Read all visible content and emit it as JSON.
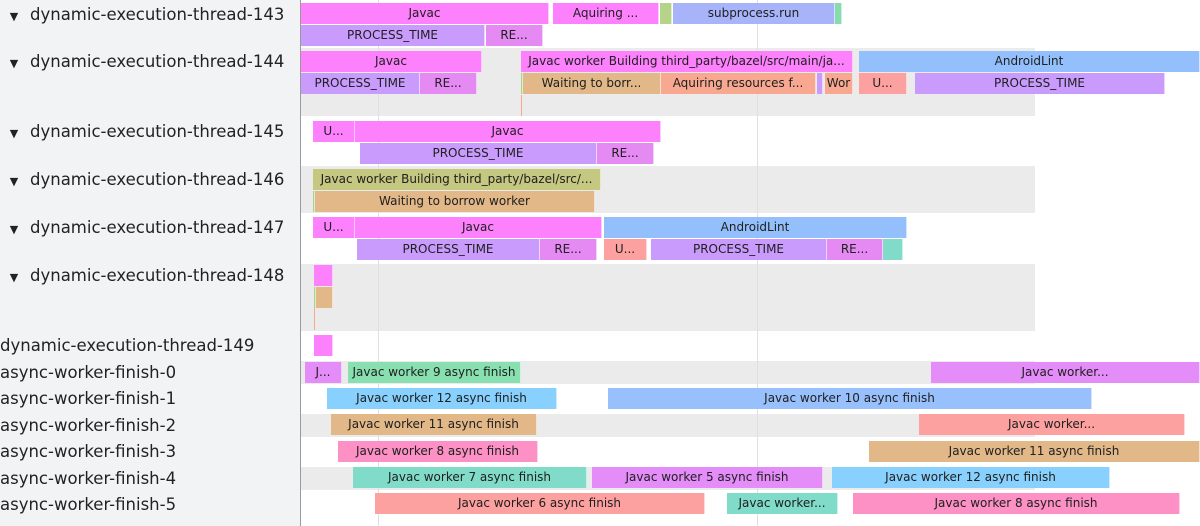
{
  "tracks": [
    {
      "label": "dynamic-execution-thread-143",
      "toggle": "▼",
      "slices": [
        {
          "label": "Javac",
          "color": "#fd80fd"
        },
        {
          "label": "Aquiring ...",
          "color": "#fd80fd"
        },
        {
          "label": "",
          "color": "#b5d48a"
        },
        {
          "label": "subprocess.run",
          "color": "#a8b4fa"
        },
        {
          "label": "",
          "color": "#86dcac"
        },
        {
          "label": "PROCESS_TIME",
          "color": "#c99bfd"
        },
        {
          "label": "RE...",
          "color": "#e58af2"
        }
      ]
    },
    {
      "label": "dynamic-execution-thread-144",
      "toggle": "▼",
      "slices": [
        {
          "label": "Javac",
          "color": "#fd80fd"
        },
        {
          "label": "Javac worker Building third_party/bazel/src/main/ja...",
          "color": "#fd80fd"
        },
        {
          "label": "AndroidLint",
          "color": "#93c0fd"
        },
        {
          "label": "PROCESS_TIME",
          "color": "#c99bfd"
        },
        {
          "label": "RE...",
          "color": "#e58af2"
        },
        {
          "label": "",
          "color": "#a8d48a"
        },
        {
          "label": "Waiting to borr...",
          "color": "#e2b888"
        },
        {
          "label": "Aquiring resources f...",
          "color": "#f8a890"
        },
        {
          "label": "",
          "color": "#c99bfd"
        },
        {
          "label": "Wor",
          "color": "#f8a890"
        },
        {
          "label": "U...",
          "color": "#fda0a0"
        },
        {
          "label": "PROCESS_TIME",
          "color": "#c99bfd"
        }
      ]
    },
    {
      "label": "dynamic-execution-thread-145",
      "toggle": "▼",
      "slices": [
        {
          "label": "U...",
          "color": "#fd80fd"
        },
        {
          "label": "Javac",
          "color": "#fd80fd"
        },
        {
          "label": "PROCESS_TIME",
          "color": "#c99bfd"
        },
        {
          "label": "RE...",
          "color": "#e58af2"
        }
      ]
    },
    {
      "label": "dynamic-execution-thread-146",
      "toggle": "▼",
      "slices": [
        {
          "label": "Javac worker Building third_party/bazel/src/...",
          "color": "#c4c880"
        },
        {
          "label": "",
          "color": "#a8d48a"
        },
        {
          "label": "Waiting to borrow worker",
          "color": "#e2b888"
        }
      ]
    },
    {
      "label": "dynamic-execution-thread-147",
      "toggle": "▼",
      "slices": [
        {
          "label": "U...",
          "color": "#fd80fd"
        },
        {
          "label": "Javac",
          "color": "#fd80fd"
        },
        {
          "label": "AndroidLint",
          "color": "#93c0fd"
        },
        {
          "label": "PROCESS_TIME",
          "color": "#c99bfd"
        },
        {
          "label": "RE...",
          "color": "#e58af2"
        },
        {
          "label": "U...",
          "color": "#fda0a0"
        },
        {
          "label": "PROCESS_TIME",
          "color": "#c99bfd"
        },
        {
          "label": "RE...",
          "color": "#e58af2"
        },
        {
          "label": "",
          "color": "#80dcc8"
        }
      ]
    },
    {
      "label": "dynamic-execution-thread-148",
      "toggle": "▼",
      "slices": [
        {
          "label": "",
          "color": "#fd80fd"
        },
        {
          "label": "",
          "color": "#a8d48a"
        },
        {
          "label": "",
          "color": "#e2b888"
        }
      ]
    },
    {
      "label": "dynamic-execution-thread-149",
      "toggle": "",
      "slices": [
        {
          "label": "",
          "color": "#fd80fd"
        }
      ]
    },
    {
      "label": "async-worker-finish-0",
      "toggle": "",
      "slices": [
        {
          "label": "J...",
          "color": "#e48cf8"
        },
        {
          "label": "Javac worker 9 async finish",
          "color": "#88e0b0"
        },
        {
          "label": "Javac worker...",
          "color": "#e48cf8"
        }
      ]
    },
    {
      "label": "async-worker-finish-1",
      "toggle": "",
      "slices": [
        {
          "label": "Javac worker 12 async finish",
          "color": "#88d0fd"
        },
        {
          "label": "Javac worker 10 async finish",
          "color": "#98c0fd"
        }
      ]
    },
    {
      "label": "async-worker-finish-2",
      "toggle": "",
      "slices": [
        {
          "label": "Javac worker 11 async finish",
          "color": "#e2b888"
        },
        {
          "label": "Javac worker...",
          "color": "#fda0a0"
        }
      ]
    },
    {
      "label": "async-worker-finish-3",
      "toggle": "",
      "slices": [
        {
          "label": "Javac worker 8 async finish",
          "color": "#fd90c4"
        },
        {
          "label": "Javac worker 11 async finish",
          "color": "#e2b888"
        }
      ]
    },
    {
      "label": "async-worker-finish-4",
      "toggle": "",
      "slices": [
        {
          "label": "Javac worker 7 async finish",
          "color": "#80dcc8"
        },
        {
          "label": "Javac worker 5 async finish",
          "color": "#e48cf8"
        },
        {
          "label": "Javac worker 12 async finish",
          "color": "#88d0fd"
        }
      ]
    },
    {
      "label": "async-worker-finish-5",
      "toggle": "",
      "slices": [
        {
          "label": "Javac worker 6 async finish",
          "color": "#fda0a0"
        },
        {
          "label": "Javac worker...",
          "color": "#80dcc8"
        },
        {
          "label": "Javac worker 8 async finish",
          "color": "#fd90c4"
        }
      ]
    }
  ]
}
